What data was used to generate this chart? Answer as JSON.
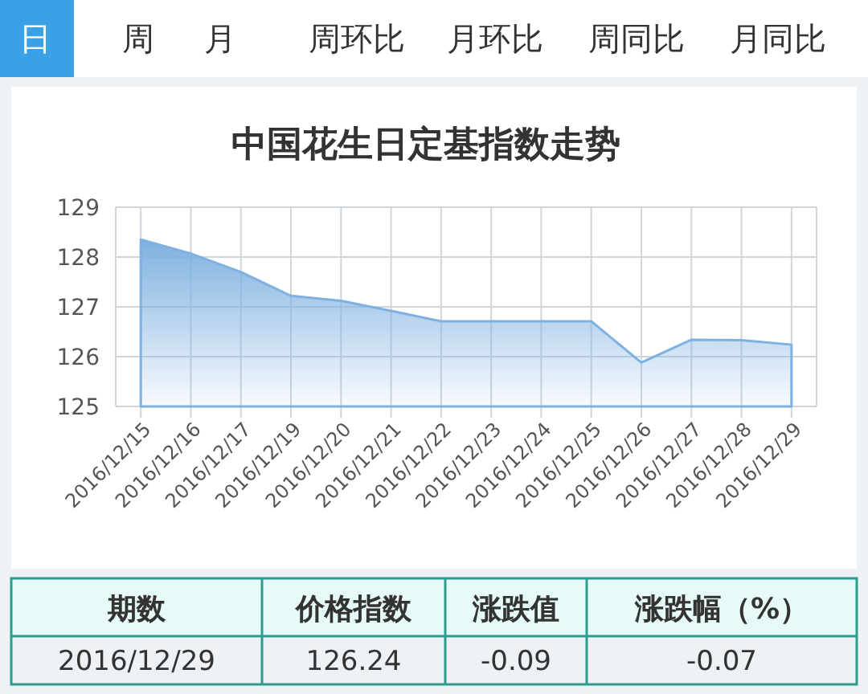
{
  "chart_data": {
    "type": "area",
    "title": "中国花生日定基指数走势",
    "categories": [
      "2016/12/15",
      "2016/12/16",
      "2016/12/17",
      "2016/12/19",
      "2016/12/20",
      "2016/12/21",
      "2016/12/22",
      "2016/12/23",
      "2016/12/24",
      "2016/12/25",
      "2016/12/26",
      "2016/12/27",
      "2016/12/28",
      "2016/12/29"
    ],
    "series": [
      {
        "color": "#7fb1e0",
        "values": [
          128.35,
          128.07,
          127.7,
          127.22,
          127.12,
          126.92,
          126.71,
          126.71,
          126.71,
          126.71,
          125.88,
          126.34,
          126.33,
          126.24
        ]
      }
    ],
    "ylim": [
      125,
      129
    ],
    "yticks": [
      125,
      126,
      127,
      128,
      129
    ],
    "grid": true,
    "marker": "none",
    "line_style": "solid",
    "annotations": [
      "日",
      "周",
      "月",
      "周环比",
      "月环比",
      "周同比",
      "月同比",
      "期数",
      "价格指数",
      "涨跌值",
      "涨跌幅（%）",
      "2016/12/29",
      "126.24",
      "-0.09",
      "-0.07"
    ]
  }
}
